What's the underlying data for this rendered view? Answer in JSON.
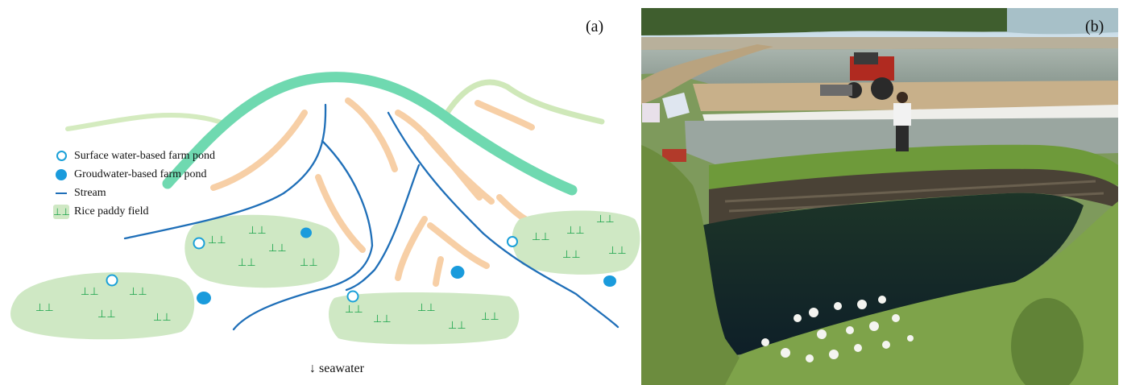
{
  "panel_a_label": "(a)",
  "panel_b_label": "(b)",
  "legend": {
    "surface_pond": "Surface water-based farm pond",
    "groundwater_pond": "Groudwater-based farm pond",
    "stream": "Stream",
    "paddy": "Rice paddy field"
  },
  "paddy_symbol": "⊥⊥",
  "seawater_label": "↓ seawater",
  "colors": {
    "ridge_main": "#6fd9b0",
    "ridge_light": "#cfe8b9",
    "slope": "#f7cfa6",
    "stream": "#1f6fb8",
    "paddy_fill": "#cfe8c4",
    "paddy_symbol": "#1aa34a",
    "surface_pond": "#1aa0d8",
    "groundwater_pond": "#1a9bdc"
  }
}
